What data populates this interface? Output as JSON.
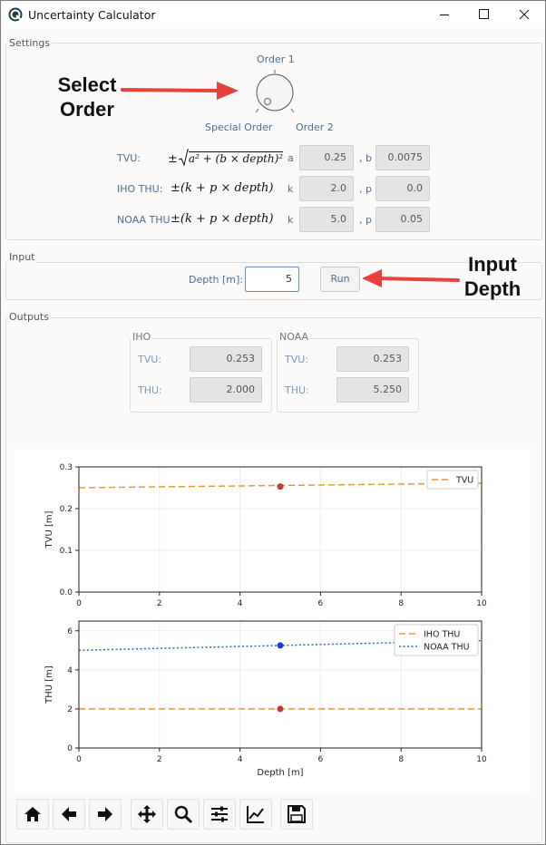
{
  "window": {
    "title": "Uncertainty Calculator"
  },
  "settings": {
    "group_label": "Settings",
    "dial": {
      "top_label": "Order 1",
      "left_label": "Special Order",
      "right_label": "Order 2"
    },
    "annotation": "Select\nOrder",
    "rows": [
      {
        "label": "TVU:",
        "formula": "±√a² + (b × depth)²",
        "p1_name": "a",
        "p1_value": "0.25",
        "p2_name": ", b",
        "p2_value": "0.0075"
      },
      {
        "label": "IHO THU:",
        "formula": "±(k + p × depth)",
        "p1_name": "k",
        "p1_value": "2.0",
        "p2_name": ", p",
        "p2_value": "0.0"
      },
      {
        "label": "NOAA THU",
        "formula": "±(k + p × depth)",
        "p1_name": "k",
        "p1_value": "5.0",
        "p2_name": ", p",
        "p2_value": "0.05"
      }
    ]
  },
  "input": {
    "group_label": "Input",
    "depth_label": "Depth [m]:",
    "depth_value": "5",
    "run_label": "Run",
    "annotation": "Input\nDepth"
  },
  "outputs": {
    "group_label": "Outputs",
    "iho": {
      "title": "IHO",
      "tvu_label": "TVU:",
      "tvu_value": "0.253",
      "thu_label": "THU:",
      "thu_value": "2.000"
    },
    "noaa": {
      "title": "NOAA",
      "tvu_label": "TVU:",
      "tvu_value": "0.253",
      "thu_label": "THU:",
      "thu_value": "5.250"
    }
  },
  "colors": {
    "orange": "#e69b28",
    "blue": "#1f6fc4",
    "point_red": "#c0392b",
    "point_blue": "#1a3fd6",
    "arrow": "#e8403a"
  },
  "toolbar": {
    "icons": [
      "home-icon",
      "back-arrow-icon",
      "forward-arrow-icon",
      "pan-icon",
      "zoom-icon",
      "configure-subplots-icon",
      "edit-axes-icon",
      "save-icon"
    ]
  },
  "chart_data": [
    {
      "type": "line",
      "xlabel": "",
      "ylabel": "TVU [m]",
      "xlim": [
        0,
        10
      ],
      "ylim": [
        0,
        0.3
      ],
      "xticks": [
        "0",
        "2",
        "4",
        "6",
        "8",
        "10"
      ],
      "yticks": [
        "0.0",
        "0.1",
        "0.2",
        "0.3"
      ],
      "grid": true,
      "legend": "top-right",
      "series": [
        {
          "name": "TVU",
          "style": "dashed",
          "color": "#e69b28",
          "x": [
            0,
            10
          ],
          "y": [
            0.25,
            0.261
          ]
        }
      ],
      "points": [
        {
          "x": 5,
          "y": 0.253,
          "color": "#c0392b"
        }
      ]
    },
    {
      "type": "line",
      "xlabel": "Depth [m]",
      "ylabel": "THU [m]",
      "xlim": [
        0,
        10
      ],
      "ylim": [
        0,
        6.5
      ],
      "xticks": [
        "0",
        "2",
        "4",
        "6",
        "8",
        "10"
      ],
      "yticks": [
        "0",
        "2",
        "4",
        "6"
      ],
      "grid": true,
      "legend": "top-right",
      "series": [
        {
          "name": "IHO THU",
          "style": "dashed",
          "color": "#e69b28",
          "x": [
            0,
            10
          ],
          "y": [
            2.0,
            2.0
          ]
        },
        {
          "name": "NOAA THU",
          "style": "dotted",
          "color": "#1f6fc4",
          "x": [
            0,
            10
          ],
          "y": [
            5.0,
            5.5
          ]
        }
      ],
      "points": [
        {
          "x": 5,
          "y": 2.0,
          "color": "#c0392b"
        },
        {
          "x": 5,
          "y": 5.25,
          "color": "#1a3fd6"
        }
      ]
    }
  ]
}
